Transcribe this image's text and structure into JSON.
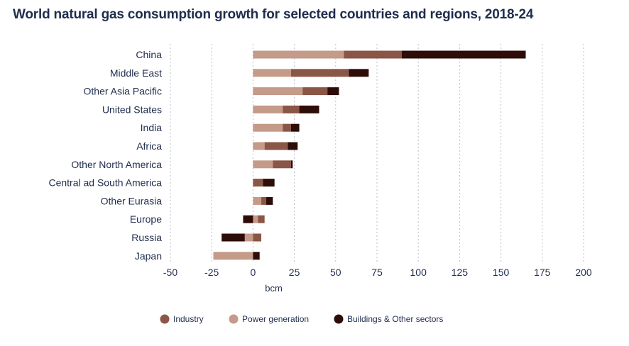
{
  "chart_data": {
    "type": "bar",
    "orientation": "horizontal",
    "stacked": true,
    "title": "World natural gas consumption growth for selected countries and regions, 2018-24",
    "xlabel": "bcm",
    "ylabel": "",
    "xlim": [
      -50,
      200
    ],
    "xticks": [
      -50,
      -25,
      0,
      25,
      50,
      75,
      100,
      125,
      150,
      175,
      200
    ],
    "grid": true,
    "legend_position": "bottom",
    "categories": [
      "China",
      "Middle East",
      "Other Asia Pacific",
      "United States",
      "India",
      "Africa",
      "Other North America",
      "Central ad South America",
      "Other Eurasia",
      "Europe",
      "Russia",
      "Japan"
    ],
    "series": [
      {
        "name": "Power generation",
        "color": "#c49a88",
        "values": [
          55,
          23,
          30,
          18,
          18,
          7,
          12,
          0,
          5,
          3,
          -5,
          -24
        ]
      },
      {
        "name": "Industry",
        "color": "#8a5646",
        "values": [
          35,
          35,
          15,
          10,
          5,
          14,
          11,
          6,
          3,
          4,
          5,
          0
        ]
      },
      {
        "name": "Buildings & Other sectors",
        "color": "#2e0c08",
        "values": [
          75,
          12,
          7,
          12,
          5,
          6,
          1,
          7,
          4,
          -6,
          -14,
          4
        ]
      }
    ],
    "legend_order": [
      "Industry",
      "Power generation",
      "Buildings & Other sectors"
    ]
  }
}
